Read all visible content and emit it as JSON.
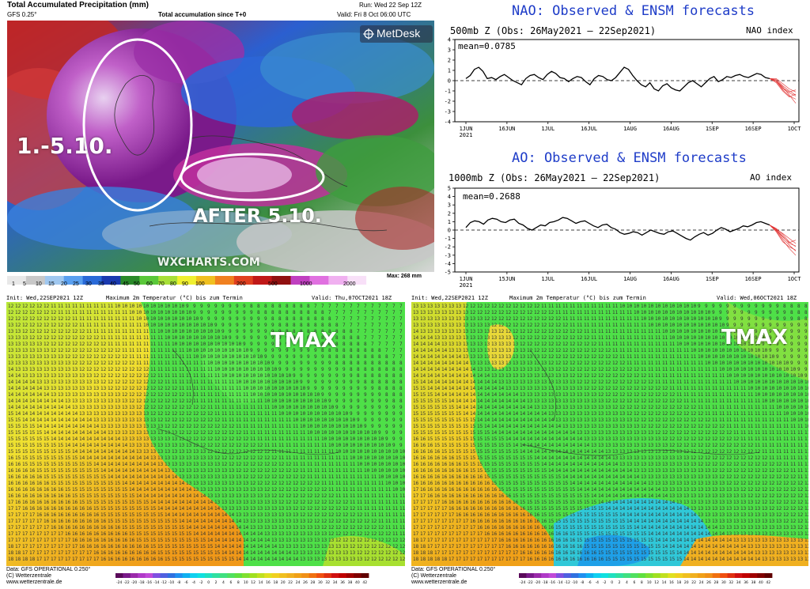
{
  "precip": {
    "title": "Total Accumulated Precipitation (mm)",
    "model": "GFS 0.25°",
    "subtitle": "Total accumulation since T+0",
    "run": "Run: Wed 22 Sep 12Z",
    "valid": "Valid: Fri 8 Oct 06:00 UTC",
    "logo": "MetDesk",
    "watermark": "WXCHARTS.COM",
    "annotation_left": "1.-5.10.",
    "annotation_right": "AFTER 5.10.",
    "scale_labels": [
      "1",
      "5",
      "10",
      "15",
      "20",
      "25",
      "30",
      "35",
      "40",
      "45",
      "50",
      "60",
      "70",
      "80",
      "90",
      "100",
      "200",
      "500",
      "1000",
      "2000"
    ],
    "scale_max": "Max: 268 mm",
    "colors": {
      "purple": "#8a1a8a",
      "magenta": "#d040d0",
      "blue": "#2a6ad8",
      "green": "#3a9a3a",
      "red": "#c81e1e"
    }
  },
  "nao": {
    "title": "NAO: Observed & ENSM forecasts",
    "subtitle": "500mb Z (Obs: 26May2021 – 22Sep2021)",
    "index_label": "NAO index",
    "mean": "mean=0.0785",
    "y_ticks": [
      "4",
      "3",
      "2",
      "1",
      "0",
      "-1",
      "-2",
      "-3",
      "-4"
    ],
    "x_ticks": [
      "1JUN\n2021",
      "16JUN",
      "1JUL",
      "16JUL",
      "1AUG",
      "16AUG",
      "1SEP",
      "16SEP",
      "1OCT"
    ]
  },
  "ao": {
    "title": "AO: Observed & ENSM forecasts",
    "subtitle": "1000mb Z (Obs: 26May2021 – 22Sep2021)",
    "index_label": "AO index",
    "mean": "mean=0.2688",
    "y_ticks": [
      "5",
      "4",
      "3",
      "2",
      "1",
      "0",
      "-1",
      "-2",
      "-3",
      "-4",
      "-5"
    ],
    "x_ticks": [
      "1JUN\n2021",
      "15JUN",
      "1JUL",
      "16JUL",
      "1AUG",
      "16AUG",
      "1SEP",
      "16SEP",
      "1OCT"
    ]
  },
  "tmax_left": {
    "init": "Init: Wed,22SEP2021 12Z",
    "title": "Maximum 2m Temperatur (°C) bis zum Termin",
    "valid": "Valid: Thu,07OCT2021 18Z",
    "label": "TMAX",
    "footer_data": "Data: GFS OPERATIONAL 0.250°",
    "footer_copy": "(C) Wetterzentrale",
    "footer_url": "www.wetterzentrale.de"
  },
  "tmax_right": {
    "init": "Init: Wed,22SEP2021 12Z",
    "title": "Maximum 2m Temperatur (°C) bis zum Termin",
    "valid": "Valid: Wed,06OCT2021 18Z",
    "label": "TMAX",
    "footer_data": "Data: GFS OPERATIONAL 0.250°",
    "footer_copy": "(C) Wetterzentrale",
    "footer_url": "www.wetterzentrale.de"
  },
  "tmax_scale": [
    "-24",
    "-22",
    "-20",
    "-18",
    "-16",
    "-14",
    "-12",
    "-10",
    "-8",
    "-6",
    "-4",
    "-2",
    "0",
    "2",
    "4",
    "6",
    "8",
    "10",
    "12",
    "14",
    "16",
    "18",
    "20",
    "22",
    "24",
    "26",
    "28",
    "30",
    "32",
    "34",
    "36",
    "38",
    "40",
    "42"
  ]
}
